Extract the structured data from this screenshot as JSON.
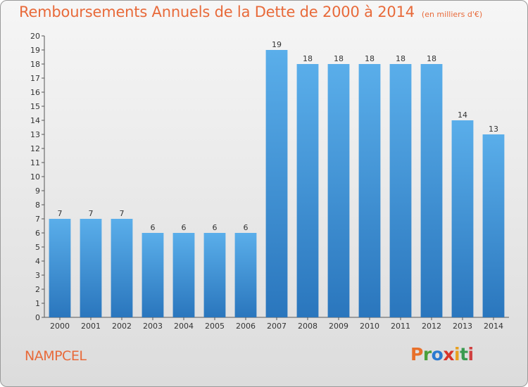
{
  "chart_data": {
    "type": "bar",
    "title": "Remboursements Annuels de la Dette de 2000 à 2014",
    "unit_note": "(en milliers d'€)",
    "xlabel": "",
    "ylabel": "",
    "categories": [
      "2000",
      "2001",
      "2002",
      "2003",
      "2004",
      "2005",
      "2006",
      "2007",
      "2008",
      "2009",
      "2010",
      "2011",
      "2012",
      "2013",
      "2014"
    ],
    "values": [
      7,
      7,
      7,
      6,
      6,
      6,
      6,
      19,
      18,
      18,
      18,
      18,
      18,
      14,
      13
    ],
    "ylim": [
      0,
      20
    ],
    "yticks": [
      0,
      1,
      2,
      3,
      4,
      5,
      6,
      7,
      8,
      9,
      10,
      11,
      12,
      13,
      14,
      15,
      16,
      17,
      18,
      19,
      20
    ],
    "grid": false,
    "bar_color": "#3a8fd6",
    "bar_color_light": "#5aaeea",
    "bar_color_dark": "#2a76bd"
  },
  "footer": {
    "commune": "NAMPCEL",
    "logo_text": "Proxiti",
    "logo_colors": [
      "#e8702a",
      "#4aa03a",
      "#2a7ad0",
      "#d8342a",
      "#e8a020",
      "#3a9a50",
      "#d04040"
    ]
  },
  "colors": {
    "title": "#e86a3a",
    "axis": "#555555"
  }
}
